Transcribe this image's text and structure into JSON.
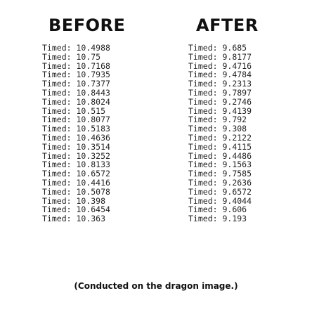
{
  "before": {
    "title": "BEFORE",
    "entries": [
      {
        "label": "Timed:",
        "value": "10.4988"
      },
      {
        "label": "Timed:",
        "value": "10.75"
      },
      {
        "label": "Timed:",
        "value": "10.7168"
      },
      {
        "label": "Timed:",
        "value": "10.7935"
      },
      {
        "label": "Timed:",
        "value": "10.7377"
      },
      {
        "label": "Timed:",
        "value": "10.8443"
      },
      {
        "label": "Timed:",
        "value": "10.8024"
      },
      {
        "label": "Timed:",
        "value": "10.515"
      },
      {
        "label": "Timed:",
        "value": "10.8077"
      },
      {
        "label": "Timed:",
        "value": "10.5183"
      },
      {
        "label": "Timed:",
        "value": "10.4636"
      },
      {
        "label": "Timed:",
        "value": "10.3514"
      },
      {
        "label": "Timed:",
        "value": "10.3252"
      },
      {
        "label": "Timed:",
        "value": "10.8133"
      },
      {
        "label": "Timed:",
        "value": "10.6572"
      },
      {
        "label": "Timed:",
        "value": "10.4416"
      },
      {
        "label": "Timed:",
        "value": "10.5078"
      },
      {
        "label": "Timed:",
        "value": "10.398"
      },
      {
        "label": "Timed:",
        "value": "10.6454"
      },
      {
        "label": "Timed:",
        "value": "10.363"
      }
    ]
  },
  "after": {
    "title": "AFTER",
    "entries": [
      {
        "label": "Timed:",
        "value": "9.685"
      },
      {
        "label": "Timed:",
        "value": "9.8177"
      },
      {
        "label": "Timed:",
        "value": "9.4716"
      },
      {
        "label": "Timed:",
        "value": "9.4784"
      },
      {
        "label": "Timed:",
        "value": "9.2313"
      },
      {
        "label": "Timed:",
        "value": "9.7897"
      },
      {
        "label": "Timed:",
        "value": "9.2746"
      },
      {
        "label": "Timed:",
        "value": "9.4139"
      },
      {
        "label": "Timed:",
        "value": "9.792"
      },
      {
        "label": "Timed:",
        "value": "9.308"
      },
      {
        "label": "Timed:",
        "value": "9.2122"
      },
      {
        "label": "Timed:",
        "value": "9.4115"
      },
      {
        "label": "Timed:",
        "value": "9.4486"
      },
      {
        "label": "Timed:",
        "value": "9.1563"
      },
      {
        "label": "Timed:",
        "value": "9.7585"
      },
      {
        "label": "Timed:",
        "value": "9.2636"
      },
      {
        "label": "Timed:",
        "value": "9.6572"
      },
      {
        "label": "Timed:",
        "value": "9.4044"
      },
      {
        "label": "Timed:",
        "value": "9.606"
      },
      {
        "label": "Timed:",
        "value": "9.193"
      }
    ]
  },
  "caption": "(Conducted on the dragon image.)"
}
